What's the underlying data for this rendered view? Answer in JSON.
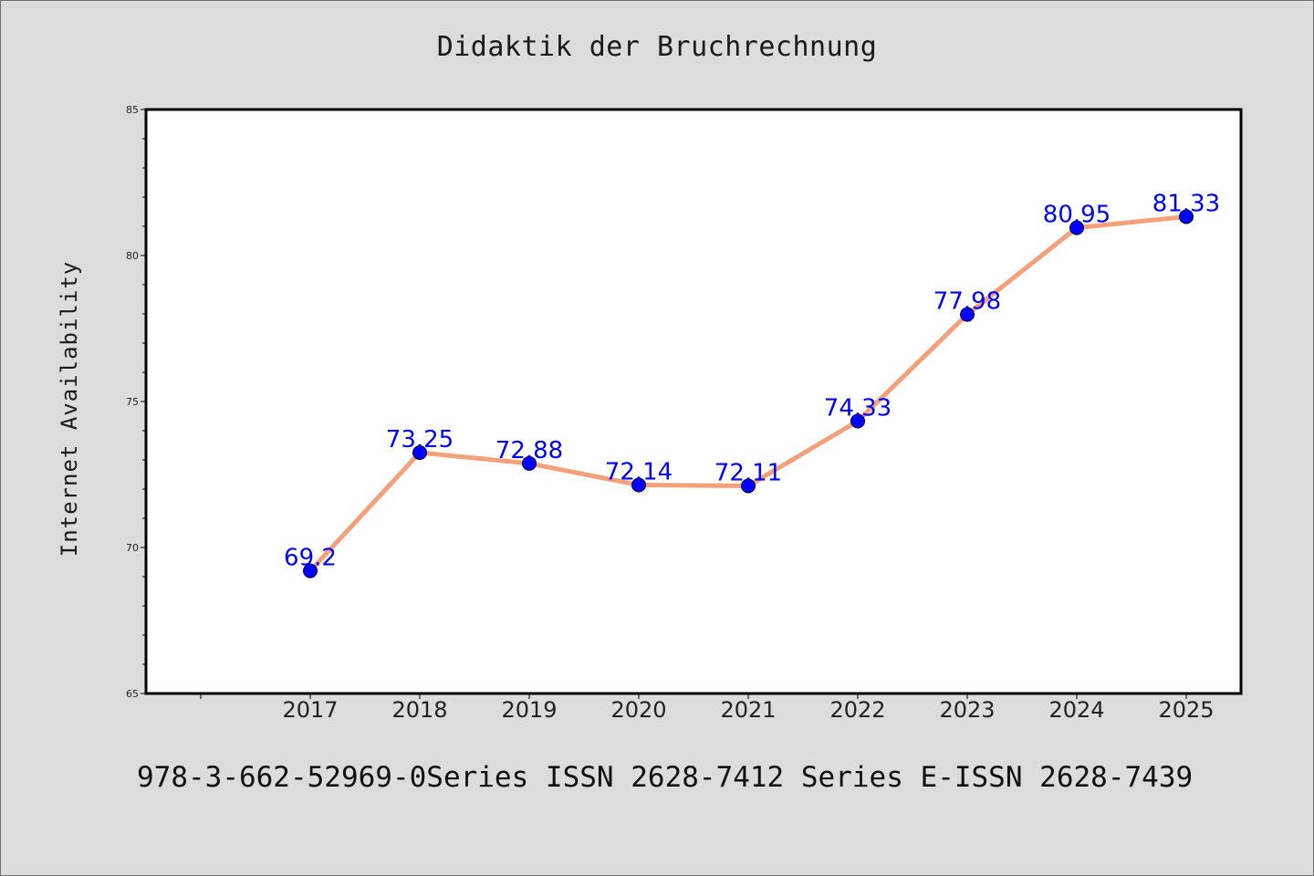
{
  "chart_data": {
    "type": "line",
    "title": "Didaktik der Bruchrechnung",
    "xlabel": "",
    "ylabel": "Internet Availability",
    "categories": [
      "2017",
      "2018",
      "2019",
      "2020",
      "2021",
      "2022",
      "2023",
      "2024",
      "2025"
    ],
    "series": [
      {
        "values": [
          69.2,
          73.25,
          72.88,
          72.14,
          72.11,
          74.33,
          77.98,
          80.95,
          81.33
        ],
        "labels": [
          "69.2",
          "73.25",
          "72.88",
          "72.14",
          "72.11",
          "74.33",
          "77.98",
          "80.95",
          "81.33"
        ],
        "line_color": "#f4a07a",
        "marker_color": "#0000ff"
      }
    ],
    "ylim": [
      65,
      85
    ],
    "yticks": [
      "65",
      "70",
      "75",
      "80",
      "85"
    ],
    "grid": false,
    "legend": "none"
  },
  "footer": {
    "text": "978-3-662-52969-0Series ISSN 2628-7412 Series E-ISSN 2628-7439"
  },
  "colors": {
    "background": "#dcdcdc",
    "plot_background": "#ffffff",
    "axis": "#000000"
  }
}
